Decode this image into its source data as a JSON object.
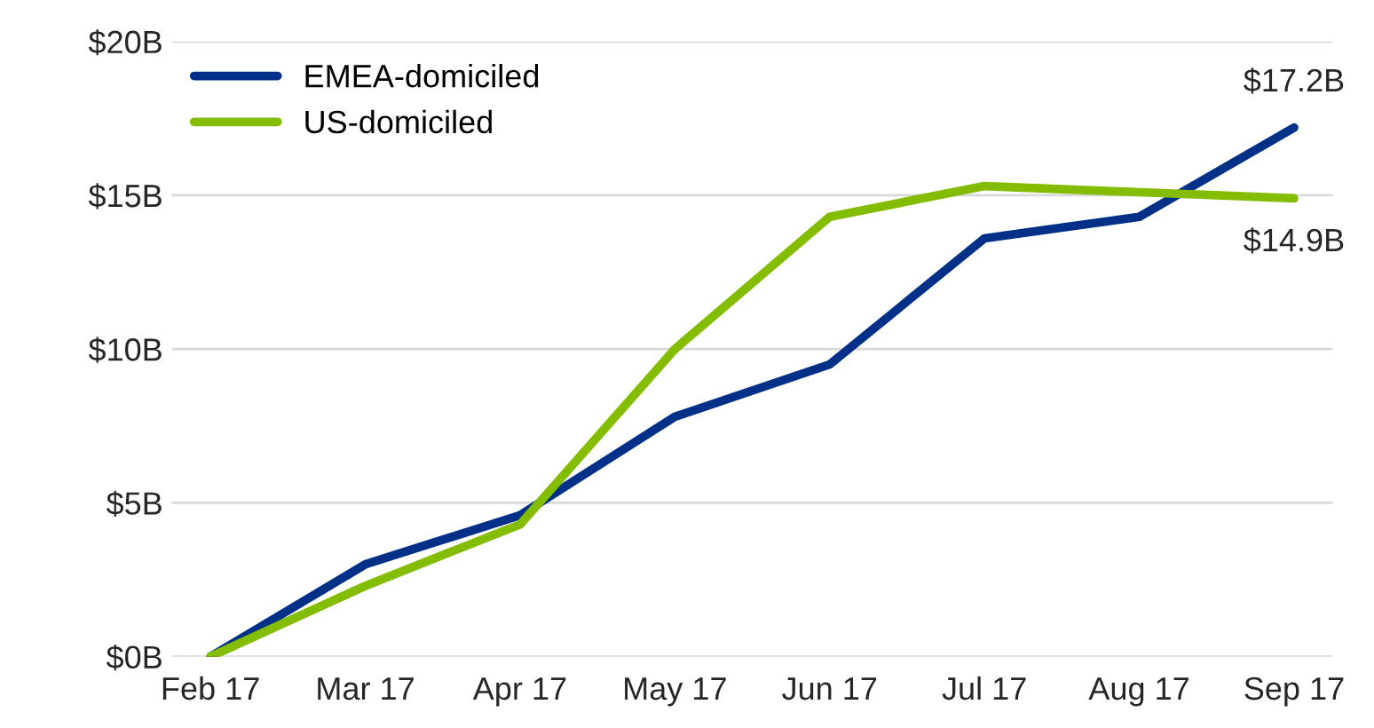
{
  "chart_data": {
    "type": "line",
    "categories": [
      "Feb 17",
      "Mar 17",
      "Apr 17",
      "May 17",
      "Jun 17",
      "Jul 17",
      "Aug 17",
      "Sep 17"
    ],
    "series": [
      {
        "name": "EMEA-domiciled",
        "color": "#003087",
        "values": [
          0,
          3.0,
          4.6,
          7.8,
          9.5,
          13.6,
          14.3,
          17.2
        ],
        "value_labels": [
          null,
          null,
          null,
          null,
          null,
          null,
          null,
          "$17.2B"
        ]
      },
      {
        "name": "US-domiciled",
        "color": "#84bd00",
        "values": [
          0,
          2.3,
          4.3,
          10.0,
          14.3,
          15.3,
          15.1,
          14.9
        ],
        "value_labels": [
          null,
          null,
          null,
          null,
          null,
          null,
          null,
          "$14.9B"
        ]
      }
    ],
    "ylim": [
      0,
      20
    ],
    "yticks": [
      {
        "value": 0,
        "label": "$0B"
      },
      {
        "value": 5,
        "label": "$5B"
      },
      {
        "value": 10,
        "label": "$10B"
      },
      {
        "value": 15,
        "label": "$15B"
      },
      {
        "value": 20,
        "label": "$20B"
      }
    ],
    "grid": "y",
    "legend": "top left",
    "marker": "none",
    "line_style": "solid"
  }
}
